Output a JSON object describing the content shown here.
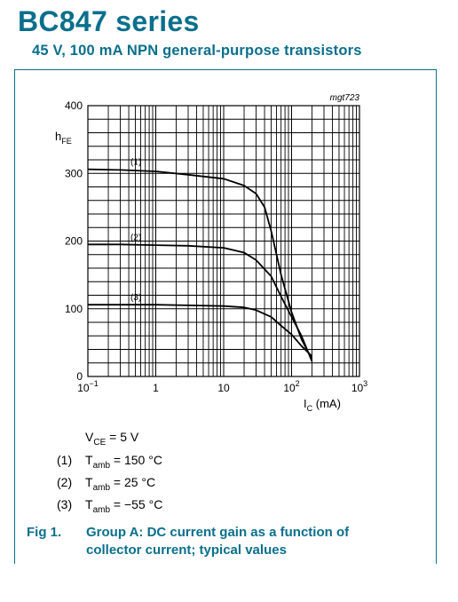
{
  "header": {
    "title": "BC847 series",
    "subtitle": "45 V, 100 mA NPN general-purpose transistors"
  },
  "figure": {
    "code": "mgt723",
    "number": "Fig 1.",
    "caption_line1": "Group A: DC current gain as a function of",
    "caption_line2": "collector current; typical values"
  },
  "conditions": {
    "vce": "V_CE = 5 V",
    "items": [
      {
        "num": "(1)",
        "text": "T_amb = 150 °C"
      },
      {
        "num": "(2)",
        "text": "T_amb = 25 °C"
      },
      {
        "num": "(3)",
        "text": "T_amb = −55 °C"
      }
    ]
  },
  "chart_data": {
    "type": "line",
    "x_scale": "log",
    "xlim": [
      0.1,
      1000
    ],
    "ylim": [
      0,
      400
    ],
    "xlabel": "I_C (mA)",
    "ylabel": "h_FE",
    "x_ticks": [
      "10−1",
      "1",
      "10",
      "10²",
      "10³"
    ],
    "y_ticks": [
      0,
      100,
      200,
      300,
      400
    ],
    "grid": true,
    "series": [
      {
        "name": "(1)",
        "points": [
          [
            0.1,
            306
          ],
          [
            0.3,
            305
          ],
          [
            1,
            303
          ],
          [
            3,
            298
          ],
          [
            10,
            292
          ],
          [
            20,
            282
          ],
          [
            30,
            270
          ],
          [
            40,
            250
          ],
          [
            50,
            215
          ],
          [
            70,
            150
          ],
          [
            100,
            95
          ],
          [
            140,
            55
          ],
          [
            200,
            25
          ]
        ]
      },
      {
        "name": "(2)",
        "points": [
          [
            0.1,
            195
          ],
          [
            0.3,
            195
          ],
          [
            1,
            194
          ],
          [
            3,
            193
          ],
          [
            10,
            190
          ],
          [
            20,
            183
          ],
          [
            30,
            172
          ],
          [
            50,
            148
          ],
          [
            70,
            118
          ],
          [
            100,
            88
          ],
          [
            140,
            60
          ],
          [
            200,
            22
          ]
        ]
      },
      {
        "name": "(3)",
        "points": [
          [
            0.1,
            106
          ],
          [
            0.3,
            106
          ],
          [
            1,
            106
          ],
          [
            3,
            105
          ],
          [
            10,
            104
          ],
          [
            20,
            102
          ],
          [
            30,
            98
          ],
          [
            50,
            88
          ],
          [
            70,
            75
          ],
          [
            100,
            62
          ],
          [
            140,
            45
          ],
          [
            200,
            30
          ]
        ]
      }
    ]
  }
}
